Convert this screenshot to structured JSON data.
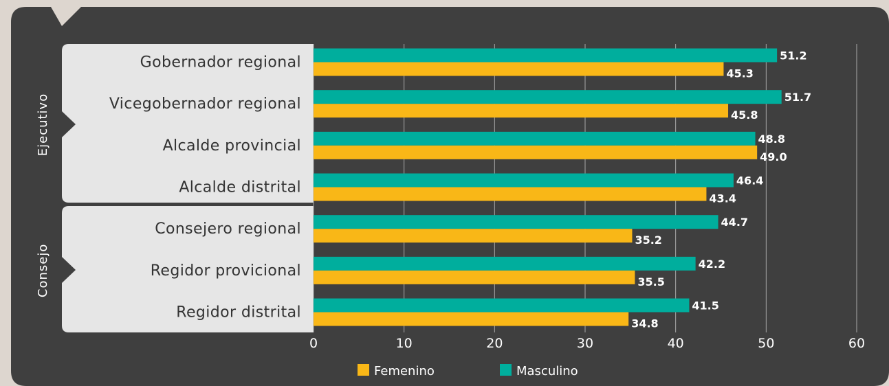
{
  "colors": {
    "page_background": "#ddd6cf",
    "panel": "#3f3f3f",
    "label_box": "#e6e6e6",
    "gridline": "#a9a9a9",
    "femenino": "#f9b717",
    "masculino": "#00ae9d",
    "text_light": "#ffffff",
    "text_dark": "#333333"
  },
  "chart_data": {
    "type": "bar",
    "orientation": "horizontal",
    "categories": [
      "Gobernador regional",
      "Vicegobernador regional",
      "Alcalde provincial",
      "Alcalde distrital",
      "Consejero regional",
      "Regidor provicional",
      "Regidor distrital"
    ],
    "groups": [
      {
        "label": "Ejecutivo",
        "categories": [
          "Gobernador regional",
          "Vicegobernador regional",
          "Alcalde provincial",
          "Alcalde distrital"
        ]
      },
      {
        "label": "Consejo",
        "categories": [
          "Consejero regional",
          "Regidor provicional",
          "Regidor distrital"
        ]
      }
    ],
    "series": [
      {
        "name": "Masculino",
        "color": "#00ae9d",
        "values": [
          51.2,
          51.7,
          48.8,
          46.4,
          44.7,
          42.2,
          41.5
        ],
        "labels": [
          "51.2",
          "51.7",
          "48.8",
          "46.4",
          "44.7",
          "42.2",
          "41.5"
        ]
      },
      {
        "name": "Femenino",
        "color": "#f9b717",
        "values": [
          45.3,
          45.8,
          49.0,
          43.4,
          35.2,
          35.5,
          34.8
        ],
        "labels": [
          "45.3",
          "45.8",
          "49.0",
          "43.4",
          "35.2",
          "35.5",
          "34.8"
        ]
      }
    ],
    "x_ticks": [
      0,
      10,
      20,
      30,
      40,
      50,
      60
    ],
    "xlim": [
      0,
      60
    ],
    "grid": true,
    "legend": {
      "position": "bottom",
      "entries": [
        {
          "name": "Femenino",
          "color": "#f9b717"
        },
        {
          "name": "Masculino",
          "color": "#00ae9d"
        }
      ]
    }
  }
}
